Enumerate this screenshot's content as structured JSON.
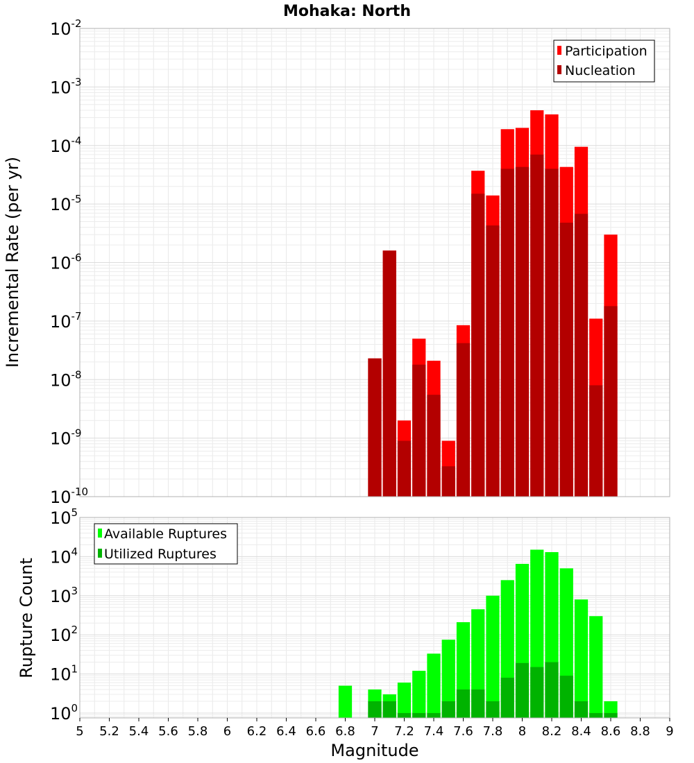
{
  "chart_data": [
    {
      "type": "bar",
      "title": "Mohaka: North",
      "xlabel": "",
      "ylabel": "Incremental Rate (per yr)",
      "yscale": "log",
      "ylim": [
        1e-10,
        0.01
      ],
      "xlim": [
        5,
        9
      ],
      "y_tick_exponents": [
        -10,
        -9,
        -8,
        -7,
        -6,
        -5,
        -4,
        -3,
        -2
      ],
      "legend_placement": "top-right",
      "grid": true,
      "bin_width": 0.1,
      "x": [
        7.0,
        7.1,
        7.2,
        7.3,
        7.4,
        7.5,
        7.6,
        7.7,
        7.8,
        7.9,
        8.0,
        8.1,
        8.2,
        8.3,
        8.4,
        8.5,
        8.6
      ],
      "series": [
        {
          "name": "Participation",
          "color": "#ff0000",
          "values": [
            2.3e-08,
            1.6e-06,
            2e-09,
            5e-08,
            2.1e-08,
            9e-10,
            8.5e-08,
            3.7e-05,
            1.4e-05,
            0.00019,
            0.0002,
            0.0004,
            0.00034,
            4.3e-05,
            9.5e-05,
            1.1e-07,
            3e-06
          ]
        },
        {
          "name": "Nucleation",
          "color": "#b30000",
          "values": [
            2.3e-08,
            1.6e-06,
            9e-10,
            1.8e-08,
            5.5e-09,
            3.3e-10,
            4.2e-08,
            1.5e-05,
            4.3e-06,
            4e-05,
            4.3e-05,
            7e-05,
            4e-05,
            4.8e-06,
            6.8e-06,
            8e-09,
            1.8e-07
          ]
        }
      ]
    },
    {
      "type": "bar",
      "title": "",
      "xlabel": "Magnitude",
      "ylabel": "Rupture Count",
      "yscale": "log",
      "ylim": [
        0.75,
        100000.0
      ],
      "xlim": [
        5,
        9
      ],
      "x_tick_labels": [
        "5",
        "5.2",
        "5.4",
        "5.6",
        "5.8",
        "6",
        "6.2",
        "6.4",
        "6.6",
        "6.8",
        "7",
        "7.2",
        "7.4",
        "7.6",
        "7.8",
        "8",
        "8.2",
        "8.4",
        "8.6",
        "8.8",
        "9"
      ],
      "y_tick_exponents": [
        0,
        1,
        2,
        3,
        4,
        5
      ],
      "legend_placement": "top-left",
      "grid": true,
      "bin_width": 0.1,
      "x": [
        6.8,
        7.0,
        7.1,
        7.2,
        7.3,
        7.4,
        7.5,
        7.6,
        7.7,
        7.8,
        7.9,
        8.0,
        8.1,
        8.2,
        8.3,
        8.4,
        8.5,
        8.6
      ],
      "series": [
        {
          "name": "Available Ruptures",
          "color": "#00ff00",
          "values": [
            5,
            4,
            3,
            6,
            12,
            33,
            75,
            210,
            450,
            1000,
            2500,
            6500,
            15000,
            13000,
            5000,
            800,
            300,
            2
          ]
        },
        {
          "name": "Utilized Ruptures",
          "color": "#00b300",
          "values": [
            0,
            2,
            2,
            1,
            1,
            1,
            2,
            4,
            4,
            2,
            8,
            19,
            15,
            20,
            9,
            2,
            1,
            1
          ]
        }
      ]
    }
  ]
}
